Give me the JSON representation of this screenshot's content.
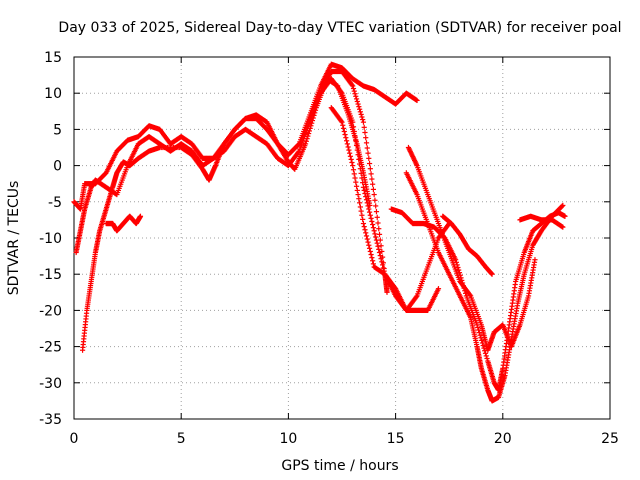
{
  "chart_data": {
    "type": "scatter",
    "title": "Day 033 of 2025, Sidereal Day-to-day VTEC variation (SDTVAR) for receiver poal",
    "xlabel": "GPS time / hours",
    "ylabel": "SDTVAR / TECUs",
    "xlim": [
      0,
      25
    ],
    "ylim": [
      -35,
      15
    ],
    "xticks": [
      "0",
      "5",
      "10",
      "15",
      "20",
      "25"
    ],
    "yticks": [
      "15",
      "10",
      "5",
      "0",
      "-5",
      "-10",
      "-15",
      "-20",
      "-25",
      "-30",
      "-35"
    ],
    "grid": true,
    "legend": "none",
    "marker": "plus",
    "color": "#ff0000",
    "series": [
      {
        "points": [
          [
            0.0,
            -5
          ],
          [
            0.3,
            -6
          ],
          [
            0.5,
            -2.5
          ],
          [
            1.0,
            -2.5
          ],
          [
            1.5,
            -1
          ],
          [
            2.0,
            2
          ],
          [
            2.5,
            3.5
          ],
          [
            3.0,
            4
          ],
          [
            3.5,
            5.5
          ],
          [
            4.0,
            5
          ],
          [
            4.5,
            3
          ],
          [
            5.0,
            4
          ],
          [
            5.5,
            3
          ],
          [
            6.0,
            1
          ],
          [
            6.5,
            1
          ],
          [
            7.0,
            3
          ],
          [
            7.5,
            5
          ],
          [
            8.0,
            6.5
          ],
          [
            8.5,
            6.5
          ],
          [
            9.0,
            5
          ],
          [
            9.5,
            3
          ],
          [
            10.0,
            1.5
          ],
          [
            10.5,
            3
          ],
          [
            11.0,
            7
          ],
          [
            11.5,
            11
          ],
          [
            12.0,
            14
          ],
          [
            12.5,
            13.5
          ],
          [
            13.0,
            12
          ],
          [
            13.5,
            11
          ],
          [
            14.0,
            10.5
          ],
          [
            14.5,
            9.5
          ],
          [
            15.0,
            8.5
          ],
          [
            15.5,
            10
          ],
          [
            16.0,
            9
          ]
        ]
      },
      {
        "points": [
          [
            0.1,
            -12
          ],
          [
            0.3,
            -9
          ],
          [
            0.5,
            -6
          ],
          [
            0.8,
            -3
          ],
          [
            1.0,
            -2
          ],
          [
            1.5,
            -3
          ],
          [
            2.0,
            -4
          ],
          [
            2.5,
            0
          ],
          [
            3.0,
            3
          ],
          [
            3.5,
            4
          ],
          [
            4.0,
            3
          ],
          [
            4.5,
            2
          ],
          [
            5.0,
            3
          ],
          [
            5.5,
            2
          ],
          [
            6.0,
            0
          ],
          [
            6.5,
            1
          ],
          [
            7.0,
            2
          ],
          [
            7.5,
            4
          ],
          [
            8.0,
            5
          ],
          [
            8.5,
            4
          ],
          [
            9.0,
            3
          ],
          [
            9.5,
            1
          ],
          [
            10.0,
            0
          ],
          [
            10.5,
            2
          ],
          [
            11.0,
            6
          ],
          [
            11.5,
            10
          ],
          [
            12.0,
            13
          ],
          [
            12.5,
            13
          ],
          [
            13.0,
            11
          ],
          [
            13.5,
            6
          ],
          [
            14.0,
            -4
          ],
          [
            14.5,
            -15
          ],
          [
            14.6,
            -17.5
          ]
        ]
      },
      {
        "points": [
          [
            0.4,
            -25.5
          ],
          [
            0.6,
            -20
          ],
          [
            0.8,
            -16
          ],
          [
            1.0,
            -12
          ],
          [
            1.2,
            -9
          ],
          [
            1.5,
            -6
          ],
          [
            1.8,
            -3
          ],
          [
            2.0,
            -1
          ],
          [
            2.3,
            0.5
          ],
          [
            2.6,
            0
          ],
          [
            3.0,
            1
          ],
          [
            3.5,
            2
          ],
          [
            4.0,
            2.5
          ],
          [
            5.0,
            2.5
          ],
          [
            5.5,
            1.5
          ],
          [
            6.0,
            -0.5
          ],
          [
            6.3,
            -2
          ],
          [
            6.6,
            0
          ],
          [
            7.0,
            3
          ],
          [
            7.5,
            5
          ],
          [
            8.0,
            6.5
          ],
          [
            8.5,
            7
          ],
          [
            9.0,
            6
          ],
          [
            9.5,
            3
          ],
          [
            10.0,
            0.5
          ],
          [
            10.3,
            -0.5
          ],
          [
            10.8,
            3
          ],
          [
            11.3,
            8
          ],
          [
            11.8,
            12
          ],
          [
            12.3,
            11
          ],
          [
            12.8,
            7
          ],
          [
            13.2,
            3
          ],
          [
            13.5,
            -1
          ],
          [
            13.8,
            -5.5
          ]
        ]
      },
      {
        "points": [
          [
            1.5,
            -8
          ],
          [
            1.8,
            -8
          ],
          [
            2.0,
            -9
          ],
          [
            2.3,
            -8
          ],
          [
            2.6,
            -7
          ],
          [
            2.9,
            -8
          ],
          [
            3.1,
            -7
          ]
        ]
      },
      {
        "points": [
          [
            11.5,
            10
          ],
          [
            12.0,
            12
          ],
          [
            12.5,
            10
          ],
          [
            13.0,
            6
          ],
          [
            13.5,
            -3
          ],
          [
            14.0,
            -9
          ],
          [
            14.5,
            -15
          ],
          [
            15.0,
            -18
          ],
          [
            15.5,
            -20
          ],
          [
            16.0,
            -18
          ],
          [
            16.5,
            -14
          ],
          [
            17.0,
            -10
          ],
          [
            17.5,
            -8
          ]
        ]
      },
      {
        "points": [
          [
            12.0,
            8
          ],
          [
            12.5,
            6
          ],
          [
            13.0,
            0
          ],
          [
            13.5,
            -8
          ],
          [
            14.0,
            -14
          ],
          [
            14.5,
            -15
          ],
          [
            15.0,
            -17
          ],
          [
            15.5,
            -20
          ],
          [
            16.0,
            -20
          ],
          [
            16.5,
            -20
          ],
          [
            17.0,
            -17
          ]
        ]
      },
      {
        "points": [
          [
            14.8,
            -6
          ],
          [
            15.3,
            -6.5
          ],
          [
            15.8,
            -8
          ],
          [
            16.3,
            -8
          ],
          [
            16.8,
            -8.5
          ],
          [
            17.3,
            -10
          ],
          [
            17.8,
            -13
          ],
          [
            18.3,
            -18
          ],
          [
            18.8,
            -22
          ],
          [
            19.3,
            -27
          ],
          [
            19.6,
            -30
          ],
          [
            19.8,
            -31
          ],
          [
            20.0,
            -28
          ],
          [
            20.3,
            -22
          ],
          [
            20.6,
            -16
          ],
          [
            21.0,
            -12
          ],
          [
            21.4,
            -9
          ],
          [
            21.8,
            -8
          ],
          [
            22.2,
            -7
          ],
          [
            22.6,
            -6.5
          ],
          [
            22.9,
            -7
          ]
        ]
      },
      {
        "points": [
          [
            15.5,
            -1
          ],
          [
            16.0,
            -4
          ],
          [
            16.5,
            -8
          ],
          [
            17.0,
            -12
          ],
          [
            17.5,
            -15
          ],
          [
            18.0,
            -18
          ],
          [
            18.5,
            -21
          ],
          [
            18.8,
            -25
          ],
          [
            19.0,
            -28
          ],
          [
            19.3,
            -31
          ],
          [
            19.5,
            -32.5
          ],
          [
            19.8,
            -32
          ],
          [
            20.1,
            -29
          ],
          [
            20.4,
            -24
          ],
          [
            20.7,
            -19
          ],
          [
            21.0,
            -15
          ],
          [
            21.4,
            -11
          ],
          [
            21.8,
            -9
          ],
          [
            22.3,
            -7
          ],
          [
            22.8,
            -5.5
          ]
        ]
      },
      {
        "points": [
          [
            15.6,
            2.5
          ],
          [
            16.0,
            0
          ],
          [
            16.5,
            -4
          ],
          [
            17.0,
            -8
          ],
          [
            17.5,
            -12
          ],
          [
            18.0,
            -16
          ],
          [
            18.5,
            -18
          ],
          [
            19.0,
            -22
          ],
          [
            19.3,
            -25.5
          ],
          [
            19.6,
            -23
          ],
          [
            20.0,
            -22
          ],
          [
            20.4,
            -25
          ],
          [
            20.8,
            -22
          ],
          [
            21.2,
            -18
          ],
          [
            21.5,
            -13
          ]
        ]
      },
      {
        "points": [
          [
            17.2,
            -7
          ],
          [
            17.6,
            -8
          ],
          [
            18.0,
            -9.5
          ],
          [
            18.4,
            -11.5
          ],
          [
            18.8,
            -12.5
          ],
          [
            19.2,
            -14
          ],
          [
            19.5,
            -15
          ]
        ]
      },
      {
        "points": [
          [
            20.8,
            -7.5
          ],
          [
            21.3,
            -7
          ],
          [
            21.8,
            -7.5
          ],
          [
            22.3,
            -7.5
          ],
          [
            22.8,
            -8.5
          ]
        ]
      }
    ]
  }
}
